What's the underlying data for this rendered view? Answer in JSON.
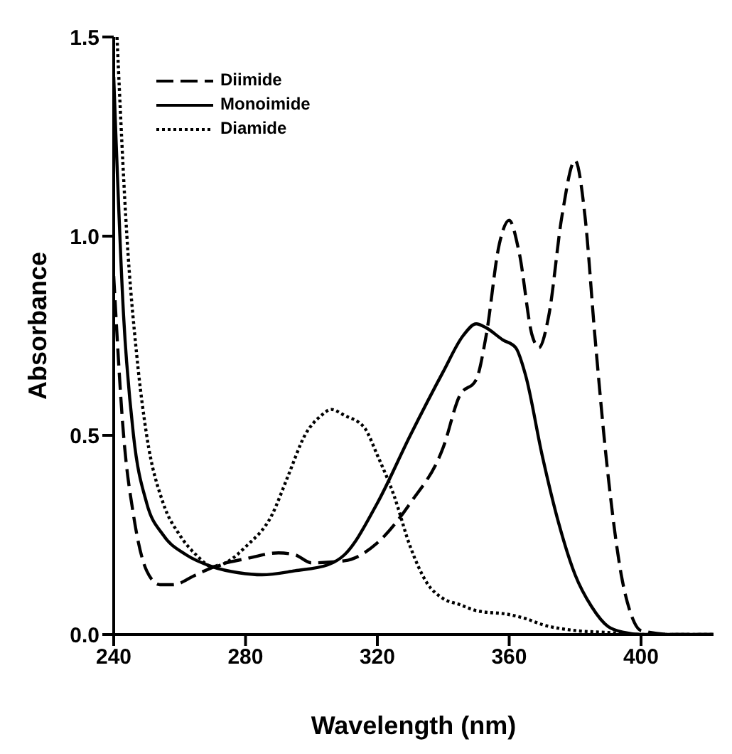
{
  "chart_data": {
    "type": "line",
    "xlabel": "Wavelength (nm)",
    "ylabel": "Absorbance",
    "xlim": [
      240,
      422
    ],
    "xticks": [
      240,
      280,
      320,
      360,
      400
    ],
    "ylim": [
      0,
      1.5
    ],
    "yticks": [
      {
        "value": 0,
        "label": "0.0"
      },
      {
        "value": 0.5,
        "label": "0.5"
      },
      {
        "value": 1,
        "label": "1.0"
      },
      {
        "value": 1.5,
        "label": "1.5"
      }
    ],
    "legend": "top left",
    "grid": false,
    "marker": "none",
    "series": [
      {
        "name": "Diimide",
        "color": "#000000",
        "line_style": "dashed",
        "x": [
          240,
          243,
          246,
          250,
          254,
          258,
          265,
          272,
          280,
          290,
          295,
          300,
          310,
          320,
          330,
          340,
          345,
          350,
          353,
          357,
          360,
          363,
          367,
          369,
          372,
          376,
          380,
          383,
          386,
          390,
          394,
          397,
          400,
          410,
          422
        ],
        "values": [
          0.9,
          0.5,
          0.3,
          0.16,
          0.125,
          0.125,
          0.15,
          0.175,
          0.19,
          0.205,
          0.2,
          0.18,
          0.185,
          0.23,
          0.33,
          0.47,
          0.6,
          0.64,
          0.75,
          0.98,
          1.04,
          0.96,
          0.75,
          0.72,
          0.8,
          1.05,
          1.19,
          1.05,
          0.75,
          0.4,
          0.15,
          0.05,
          0.01,
          0,
          0
        ]
      },
      {
        "name": "Monoimide",
        "color": "#000000",
        "line_style": "solid",
        "x": [
          240,
          243,
          246,
          250,
          255,
          262,
          270,
          278,
          285,
          295,
          305,
          310,
          320,
          330,
          340,
          346,
          350,
          353,
          358,
          362,
          365,
          370,
          375,
          380,
          385,
          390,
          395,
          400,
          422
        ],
        "values": [
          1.4,
          0.8,
          0.5,
          0.33,
          0.25,
          0.2,
          0.17,
          0.155,
          0.15,
          0.16,
          0.175,
          0.2,
          0.33,
          0.5,
          0.66,
          0.75,
          0.78,
          0.77,
          0.74,
          0.72,
          0.65,
          0.45,
          0.28,
          0.15,
          0.07,
          0.02,
          0.005,
          0,
          0
        ]
      },
      {
        "name": "Diamide",
        "color": "#000000",
        "line_style": "dotted",
        "x": [
          241,
          244,
          247,
          250,
          255,
          260,
          265,
          270,
          275,
          280,
          288,
          293,
          298,
          303,
          306,
          310,
          316,
          320,
          325,
          330,
          335,
          340,
          345,
          350,
          360,
          365,
          370,
          380,
          390,
          400,
          422
        ],
        "values": [
          1.5,
          1.0,
          0.7,
          0.5,
          0.33,
          0.25,
          0.2,
          0.17,
          0.185,
          0.22,
          0.3,
          0.4,
          0.5,
          0.55,
          0.565,
          0.55,
          0.52,
          0.45,
          0.35,
          0.22,
          0.13,
          0.09,
          0.075,
          0.06,
          0.05,
          0.04,
          0.025,
          0.01,
          0.005,
          0,
          0
        ]
      }
    ]
  }
}
